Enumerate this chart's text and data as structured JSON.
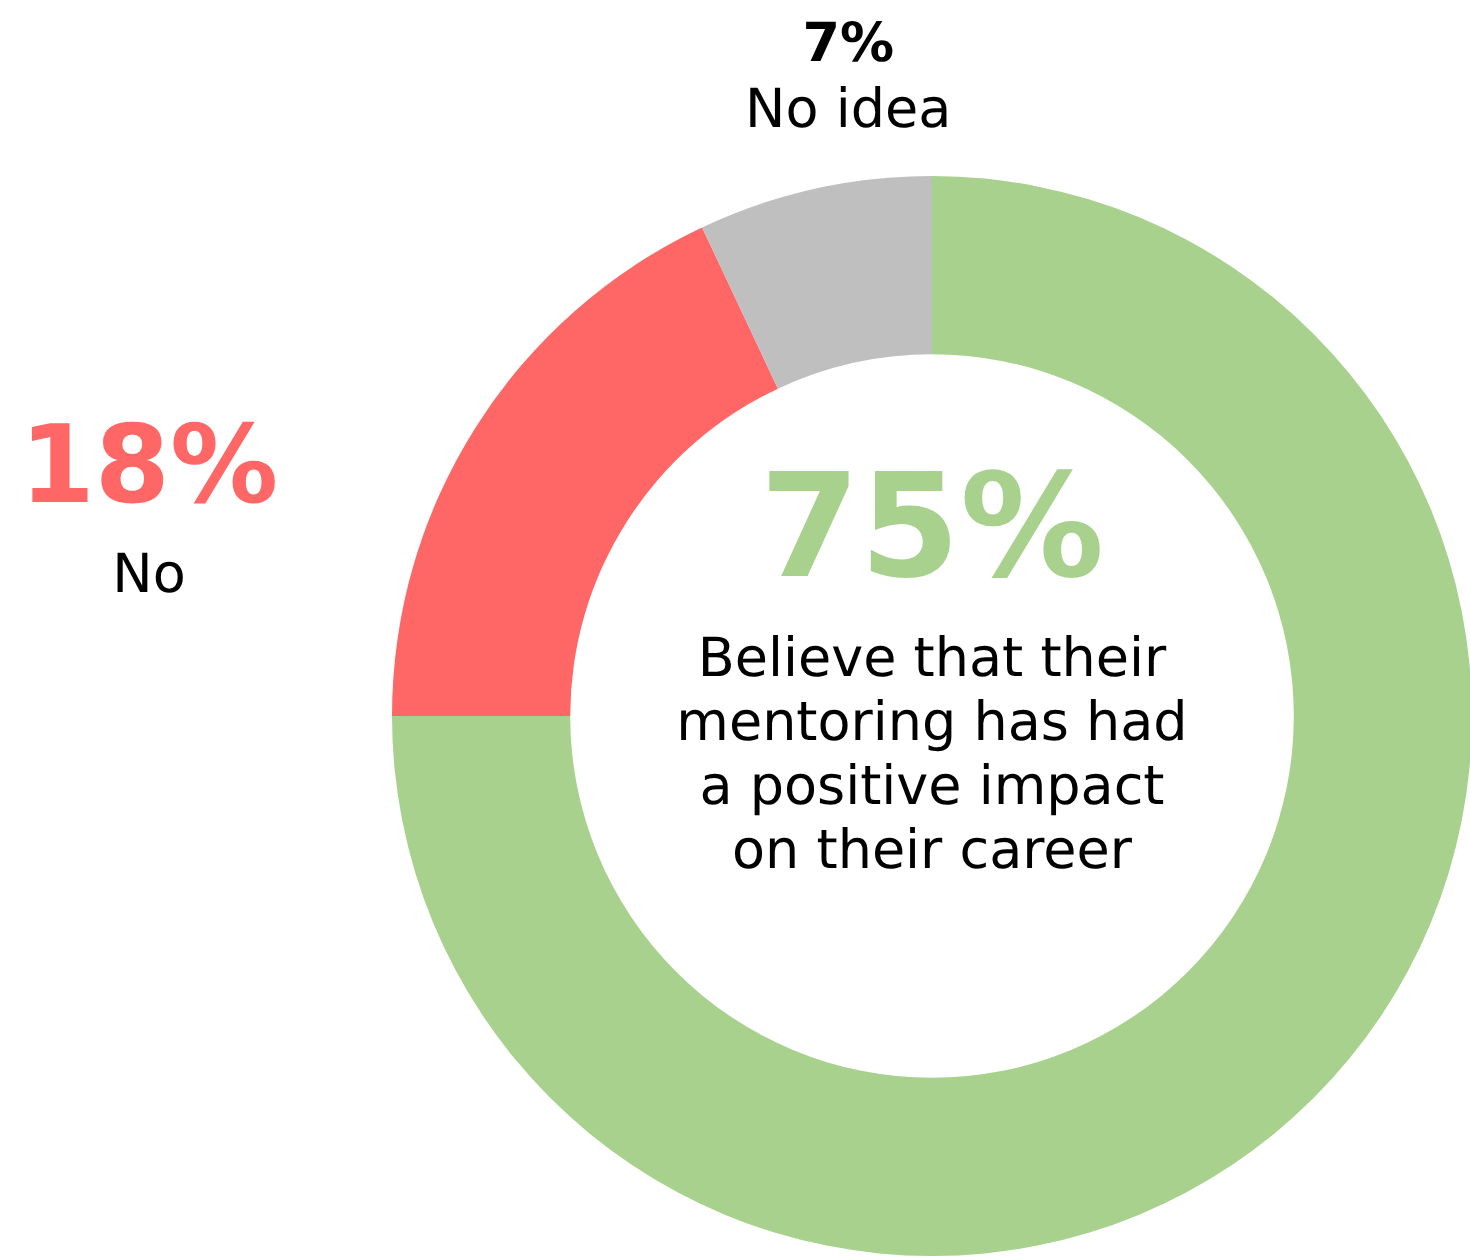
{
  "chart_data": {
    "type": "donut",
    "categories": [
      "Believe that their mentoring has had a positive impact on their career",
      "No",
      "No idea"
    ],
    "values": [
      75,
      18,
      7
    ],
    "colors": [
      "#a9d18e",
      "#ff6666",
      "#bfbfbf"
    ],
    "value_labels": [
      "75%",
      "18%",
      "7%"
    ]
  }
}
